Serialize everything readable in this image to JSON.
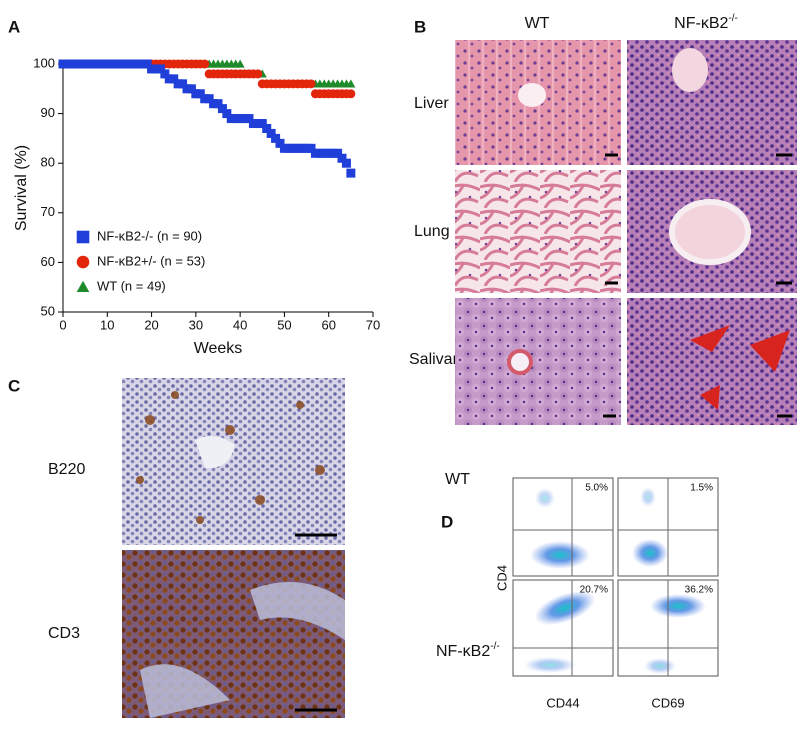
{
  "chart_data": {
    "type": "line",
    "panel_label": "A",
    "x_label": "Weeks",
    "y_label": "Survival (%)",
    "x": [
      0,
      1,
      2,
      3,
      4,
      5,
      6,
      7,
      8,
      9,
      10,
      11,
      12,
      13,
      14,
      15,
      16,
      17,
      18,
      19,
      20,
      21,
      22,
      23,
      24,
      25,
      26,
      27,
      28,
      29,
      30,
      31,
      32,
      33,
      34,
      35,
      36,
      37,
      38,
      39,
      40,
      41,
      42,
      43,
      44,
      45,
      46,
      47,
      48,
      49,
      50,
      51,
      52,
      53,
      54,
      55,
      56,
      57,
      58,
      59,
      60,
      61,
      62,
      63,
      64,
      65
    ],
    "series": [
      {
        "name": "NF-κB2-/- (n = 90)",
        "color": "#1f3fd8",
        "marker": "square",
        "values": [
          100,
          100,
          100,
          100,
          100,
          100,
          100,
          100,
          100,
          100,
          100,
          100,
          100,
          100,
          100,
          100,
          100,
          100,
          100,
          100,
          99,
          99,
          99,
          98,
          97,
          97,
          96,
          96,
          95,
          95,
          94,
          94,
          93,
          93,
          92,
          92,
          91,
          90,
          89,
          89,
          89,
          89,
          89,
          88,
          88,
          88,
          87,
          86,
          85,
          84,
          83,
          83,
          83,
          83,
          83,
          83,
          83,
          82,
          82,
          82,
          82,
          82,
          82,
          81,
          80,
          78
        ]
      },
      {
        "name": "NF-κB2+/- (n = 53)",
        "color": "#e2260c",
        "marker": "circle",
        "values": [
          100,
          100,
          100,
          100,
          100,
          100,
          100,
          100,
          100,
          100,
          100,
          100,
          100,
          100,
          100,
          100,
          100,
          100,
          100,
          100,
          100,
          100,
          100,
          100,
          100,
          100,
          100,
          100,
          100,
          100,
          100,
          100,
          100,
          98,
          98,
          98,
          98,
          98,
          98,
          98,
          98,
          98,
          98,
          98,
          98,
          96,
          96,
          96,
          96,
          96,
          96,
          96,
          96,
          96,
          96,
          96,
          96,
          94,
          94,
          94,
          94,
          94,
          94,
          94,
          94,
          94
        ]
      },
      {
        "name": "WT (n = 49)",
        "color": "#1e8a2a",
        "marker": "triangle",
        "values": [
          100,
          100,
          100,
          100,
          100,
          100,
          100,
          100,
          100,
          100,
          100,
          100,
          100,
          100,
          100,
          100,
          100,
          100,
          100,
          100,
          100,
          100,
          100,
          100,
          100,
          100,
          100,
          100,
          100,
          100,
          100,
          100,
          100,
          100,
          100,
          100,
          100,
          100,
          100,
          100,
          100,
          98,
          98,
          98,
          98,
          98,
          96,
          96,
          96,
          96,
          96,
          96,
          96,
          96,
          96,
          96,
          96,
          96,
          96,
          96,
          96,
          96,
          96,
          96,
          96,
          96
        ]
      }
    ],
    "xlim": [
      0,
      70
    ],
    "ylim": [
      50,
      100
    ],
    "xticks": [
      0,
      10,
      20,
      30,
      40,
      50,
      60,
      70
    ],
    "yticks": [
      50,
      60,
      70,
      80,
      90,
      100
    ],
    "legend": "lower left"
  },
  "panel_b": {
    "label": "B",
    "columns": [
      {
        "base": "WT"
      },
      {
        "base": "NF-κB2",
        "sup": "-/-"
      }
    ],
    "rows": [
      "Liver",
      "Lung",
      "Salivary"
    ]
  },
  "panel_c": {
    "label": "C",
    "rows": [
      "B220",
      "CD3"
    ]
  },
  "panel_d": {
    "label": "D",
    "rows": [
      {
        "base": "WT"
      },
      {
        "base": "NF-κB2",
        "sup": "-/-"
      }
    ],
    "y_label": "CD4",
    "columns": [
      "CD44",
      "CD69"
    ],
    "percentages": [
      [
        "5.0%",
        "1.5%"
      ],
      [
        "20.7%",
        "36.2%"
      ]
    ]
  }
}
